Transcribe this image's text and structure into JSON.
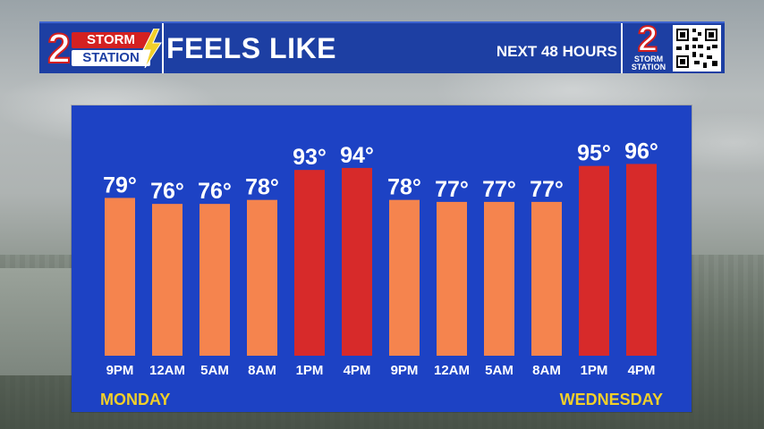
{
  "header": {
    "logo_storm": "STORM",
    "logo_station": "STATION",
    "logo_number": "2",
    "title": "FEELS LIKE",
    "subtitle": "NEXT 48 HOURS",
    "right_logo_number": "2",
    "right_logo_line1": "STORM",
    "right_logo_line2": "STATION"
  },
  "colors": {
    "header_bg": "#1d3fa3",
    "panel_bg": "#1d42c4",
    "bar_warm": "#f5844e",
    "bar_hot": "#d72a2a",
    "day_label": "#f1cf2a"
  },
  "chart_data": {
    "type": "bar",
    "categories": [
      "9PM",
      "12AM",
      "5AM",
      "8AM",
      "1PM",
      "4PM",
      "9PM",
      "12AM",
      "5AM",
      "8AM",
      "1PM",
      "4PM"
    ],
    "values": [
      79,
      76,
      76,
      78,
      93,
      94,
      78,
      77,
      77,
      77,
      95,
      96
    ],
    "value_labels": [
      "79°",
      "76°",
      "76°",
      "78°",
      "93°",
      "94°",
      "78°",
      "77°",
      "77°",
      "77°",
      "95°",
      "96°"
    ],
    "bar_colors": [
      "#f5844e",
      "#f5844e",
      "#f5844e",
      "#f5844e",
      "#d72a2a",
      "#d72a2a",
      "#f5844e",
      "#f5844e",
      "#f5844e",
      "#f5844e",
      "#d72a2a",
      "#d72a2a"
    ],
    "ylim": [
      0,
      100
    ],
    "grid": false,
    "day_labels": {
      "start": "MONDAY",
      "end": "WEDNESDAY"
    }
  }
}
